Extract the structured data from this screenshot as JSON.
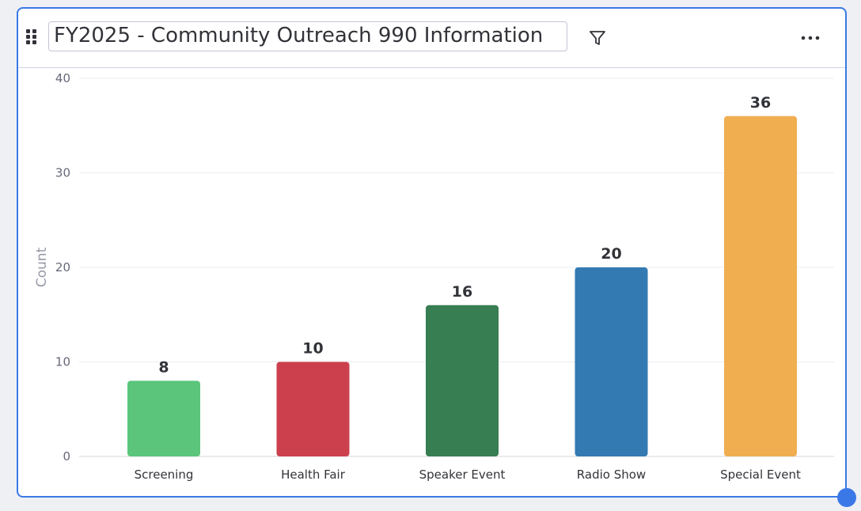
{
  "widget": {
    "title": "FY2025 - Community Outreach 990 Information"
  },
  "icons": {
    "drag": "drag-handle-icon",
    "filter": "filter-icon",
    "more": "more-horizontal-icon"
  },
  "colors": {
    "accent": "#3b78e7",
    "text": "#323338",
    "axis_text": "#676879",
    "grid": "#ebecf0"
  },
  "chart_data": {
    "type": "bar",
    "title": "",
    "xlabel": "",
    "ylabel": "Count",
    "ylim": [
      0,
      40
    ],
    "yticks": [
      0,
      10,
      20,
      30,
      40
    ],
    "categories": [
      "Screening",
      "Health Fair",
      "Speaker Event",
      "Radio Show",
      "Special Event"
    ],
    "values": [
      8,
      10,
      16,
      20,
      36
    ],
    "colors": [
      "#5ac57b",
      "#cc404e",
      "#377e52",
      "#337ab2",
      "#f0ae51"
    ]
  }
}
